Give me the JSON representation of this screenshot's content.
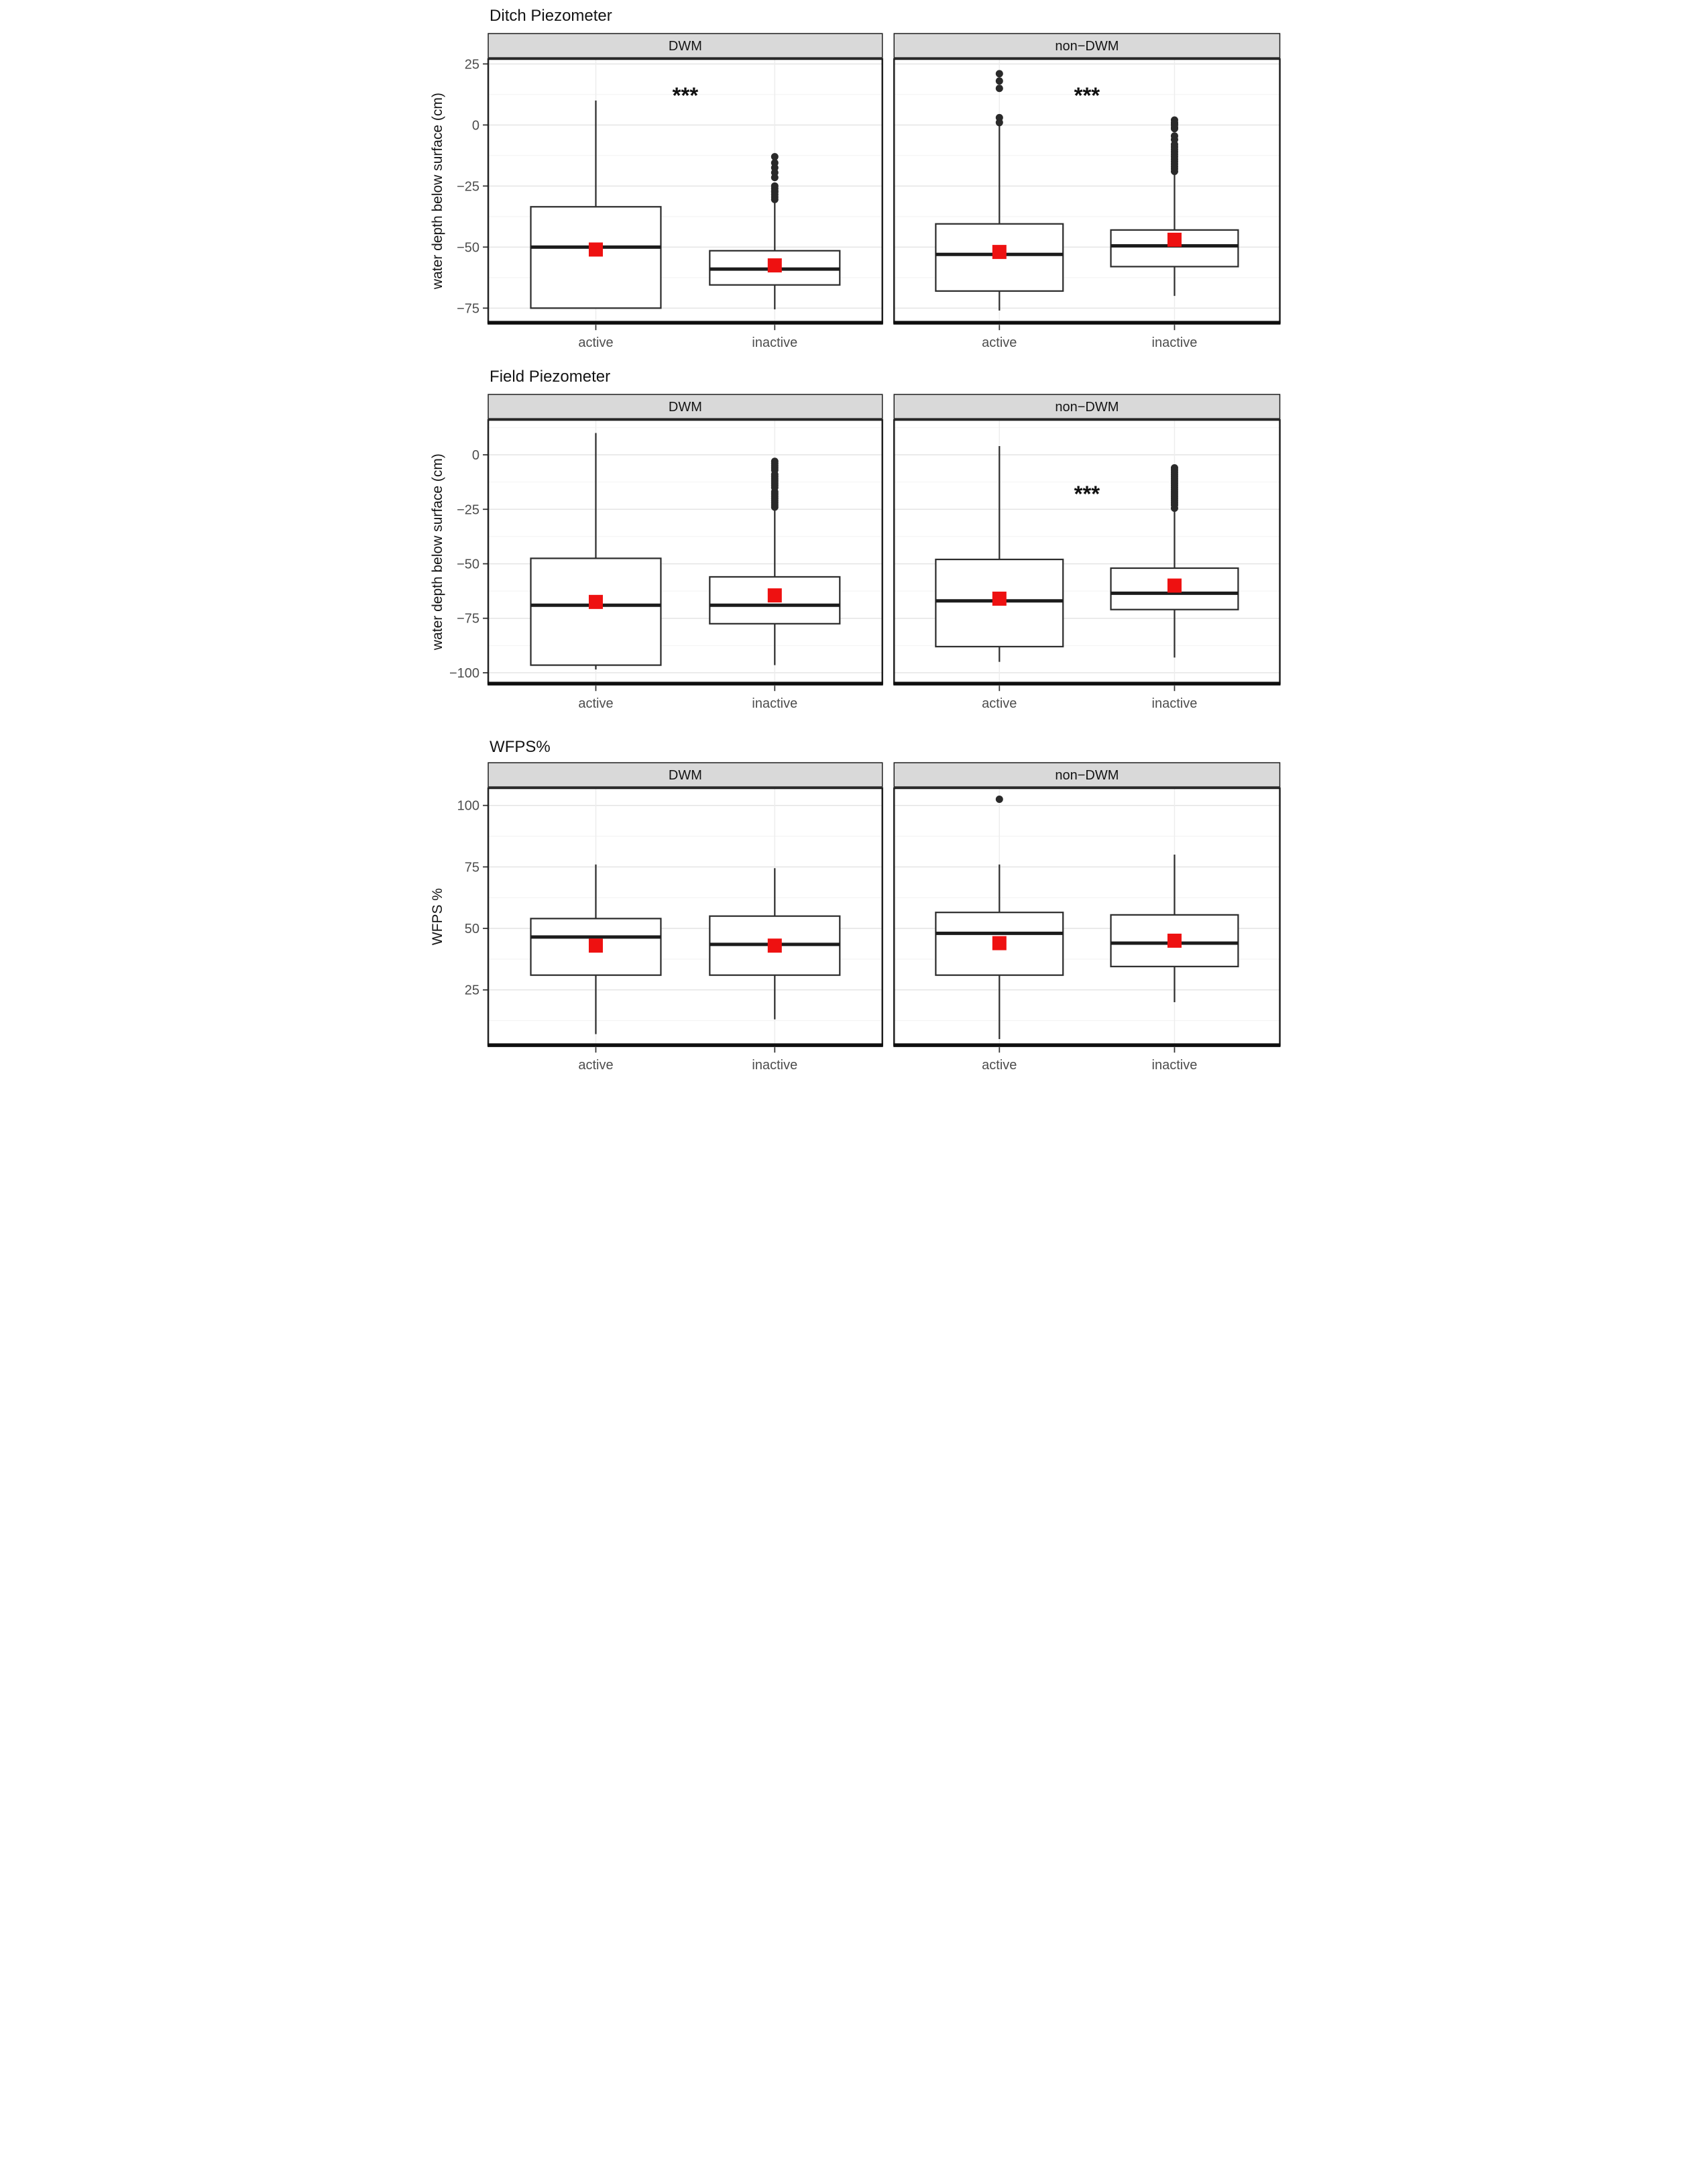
{
  "style": {
    "mean_marker_color": "#ee1111",
    "strip_background": "#d9d9d9",
    "strip_border": "#1f1f1f",
    "panel_border": "#1f1f1f",
    "box_stroke": "#2e2e2e",
    "outlier_color": "#2a2a2a",
    "grid_major": "#e4e4e4",
    "grid_minor": "#f2f2f2",
    "text_color": "#141414",
    "muted_text_color": "#4d4d4d",
    "significance_color": "#111111"
  },
  "chart_data": [
    {
      "type": "boxplot",
      "title": "Ditch Piezometer",
      "xlabel": "",
      "ylabel": "water depth below surface (cm)",
      "ylim": [
        -81,
        27
      ],
      "yticks": [
        25,
        0,
        -25,
        -50,
        -75
      ],
      "grid": true,
      "legend": "none",
      "categories": [
        "active",
        "inactive"
      ],
      "facets": [
        {
          "label": "DWM",
          "significance": {
            "text": "***",
            "y": 12
          },
          "boxes": [
            {
              "category": "active",
              "whisker_low": -75,
              "q1": -75,
              "median": -50,
              "q3": -33.5,
              "whisker_high": 10,
              "mean": -51,
              "outliers": []
            },
            {
              "category": "inactive",
              "whisker_low": -75.5,
              "q1": -65.5,
              "median": -59,
              "q3": -51.5,
              "whisker_high": -31,
              "mean": -57.5,
              "outliers": [
                -13,
                -15.5,
                -17.5,
                -19.5,
                -21.5,
                -25,
                -26,
                -27,
                -27.5,
                -28.5,
                -29.5,
                -30.5
              ]
            }
          ]
        },
        {
          "label": "non−DWM",
          "significance": {
            "text": "***",
            "y": 12
          },
          "boxes": [
            {
              "category": "active",
              "whisker_low": -76,
              "q1": -68,
              "median": -53,
              "q3": -40.5,
              "whisker_high": 0,
              "mean": -52,
              "outliers": [
                21,
                18,
                15,
                3,
                1
              ]
            },
            {
              "category": "inactive",
              "whisker_low": -70,
              "q1": -58,
              "median": -49.5,
              "q3": -43,
              "whisker_high": -19.5,
              "mean": -47,
              "outliers": [
                2,
                1,
                0.5,
                0,
                -1,
                -1.5,
                -4.5,
                -6,
                -8,
                -9,
                -10,
                -11,
                -12,
                -13,
                -14,
                -15,
                -16,
                -17,
                -18,
                -19
              ]
            }
          ]
        }
      ]
    },
    {
      "type": "boxplot",
      "title": "Field Piezometer",
      "xlabel": "",
      "ylabel": "water depth below surface (cm)",
      "ylim": [
        -105,
        16
      ],
      "yticks": [
        0,
        -25,
        -50,
        -75,
        -100
      ],
      "grid": true,
      "legend": "none",
      "categories": [
        "active",
        "inactive"
      ],
      "facets": [
        {
          "label": "DWM",
          "significance": null,
          "boxes": [
            {
              "category": "active",
              "whisker_low": -98.5,
              "q1": -96.5,
              "median": -69,
              "q3": -47.5,
              "whisker_high": 10,
              "mean": -67.5,
              "outliers": []
            },
            {
              "category": "inactive",
              "whisker_low": -96.5,
              "q1": -77.5,
              "median": -69,
              "q3": -56,
              "whisker_high": -24.5,
              "mean": -64.5,
              "outliers": [
                -3,
                -4,
                -5,
                -6,
                -7,
                -9,
                -10,
                -11,
                -12,
                -13,
                -14,
                -15,
                -17,
                -18,
                -19,
                -20,
                -21,
                -22,
                -23,
                -24
              ]
            }
          ]
        },
        {
          "label": "non−DWM",
          "significance": {
            "text": "***",
            "y": -18
          },
          "boxes": [
            {
              "category": "active",
              "whisker_low": -95,
              "q1": -88,
              "median": -67,
              "q3": -48,
              "whisker_high": 4,
              "mean": -66,
              "outliers": []
            },
            {
              "category": "inactive",
              "whisker_low": -93,
              "q1": -71,
              "median": -63.5,
              "q3": -52,
              "whisker_high": -25,
              "mean": -60,
              "outliers": [
                -6,
                -7,
                -8,
                -9,
                -10,
                -11,
                -12,
                -13,
                -14,
                -15,
                -16,
                -17,
                -18,
                -19,
                -20,
                -21,
                -22,
                -23,
                -24.5
              ]
            }
          ]
        }
      ]
    },
    {
      "type": "boxplot",
      "title": "WFPS%",
      "xlabel": "",
      "ylabel": "WFPS %",
      "ylim": [
        2.5,
        107
      ],
      "yticks": [
        100,
        75,
        50,
        25
      ],
      "grid": true,
      "legend": "none",
      "categories": [
        "active",
        "inactive"
      ],
      "facets": [
        {
          "label": "DWM",
          "significance": null,
          "boxes": [
            {
              "category": "active",
              "whisker_low": 7,
              "q1": 31,
              "median": 46.5,
              "q3": 54,
              "whisker_high": 76,
              "mean": 43,
              "outliers": []
            },
            {
              "category": "inactive",
              "whisker_low": 13,
              "q1": 31,
              "median": 43.5,
              "q3": 55,
              "whisker_high": 74.5,
              "mean": 43,
              "outliers": []
            }
          ]
        },
        {
          "label": "non−DWM",
          "significance": null,
          "boxes": [
            {
              "category": "active",
              "whisker_low": 5,
              "q1": 31,
              "median": 48,
              "q3": 56.5,
              "whisker_high": 76,
              "mean": 44,
              "outliers": [
                102.5
              ]
            },
            {
              "category": "inactive",
              "whisker_low": 20,
              "q1": 34.5,
              "median": 44,
              "q3": 55.5,
              "whisker_high": 80,
              "mean": 45,
              "outliers": []
            }
          ]
        }
      ]
    }
  ]
}
